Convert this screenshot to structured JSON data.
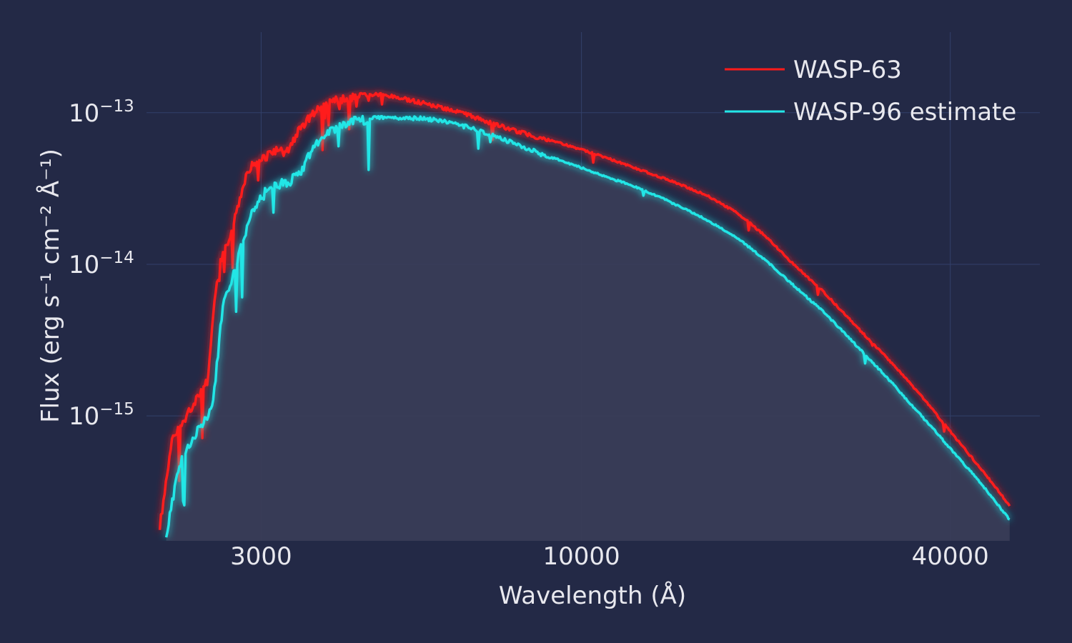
{
  "chart_data": {
    "type": "line",
    "xlabel": "Wavelength (Å)",
    "ylabel": "Flux (erg s⁻¹ cm⁻² Å⁻¹)",
    "x_scale": "log",
    "y_scale": "log",
    "xlim": [
      1950,
      56000
    ],
    "ylim": [
      1.5e-16,
      3.4e-13
    ],
    "x_ticks": [
      {
        "value": 3000,
        "label": "3000"
      },
      {
        "value": 10000,
        "label": "10000"
      },
      {
        "value": 40000,
        "label": "40000"
      }
    ],
    "y_ticks": [
      {
        "value": 1e-13,
        "base": "10",
        "exp": "−13"
      },
      {
        "value": 1e-14,
        "base": "10",
        "exp": "−14"
      },
      {
        "value": 1e-15,
        "base": "10",
        "exp": "−15"
      }
    ],
    "grid": true,
    "legend_position": "top-right",
    "area_fill": "under-series-2",
    "series": [
      {
        "name": "WASP-63",
        "color": "#ff1a1a",
        "x": [
          2050,
          2150,
          2250,
          2350,
          2450,
          2550,
          2650,
          2750,
          2850,
          2950,
          3050,
          3150,
          3300,
          3450,
          3600,
          3800,
          4000,
          4200,
          4400,
          4700,
          5000,
          5500,
          6000,
          6500,
          7000,
          8000,
          9000,
          10000,
          11000,
          12000,
          14000,
          16000,
          18000,
          20000,
          22000,
          25000,
          28000,
          32000,
          36000,
          40000,
          45000,
          50000
        ],
        "y": [
          2e-16,
          7.5e-16,
          1e-15,
          1.4e-15,
          1.8e-15,
          1e-14,
          1.5e-14,
          2.6e-14,
          4.5e-14,
          5e-14,
          5.5e-14,
          6e-14,
          5.8e-14,
          8e-14,
          1e-13,
          1.2e-13,
          1.3e-13,
          1.35e-13,
          1.35e-13,
          1.35e-13,
          1.3e-13,
          1.2e-13,
          1.1e-13,
          1e-13,
          9e-14,
          7.6e-14,
          6.6e-14,
          5.8e-14,
          5.1e-14,
          4.5e-14,
          3.6e-14,
          2.9e-14,
          2.2e-14,
          1.55e-14,
          1.05e-14,
          6.5e-15,
          4e-15,
          2.3e-15,
          1.35e-15,
          8e-16,
          4.5e-16,
          2.6e-16
        ]
      },
      {
        "name": "WASP-96 estimate",
        "color": "#22e6e6",
        "x": [
          2100,
          2200,
          2300,
          2400,
          2500,
          2600,
          2700,
          2800,
          2900,
          3000,
          3100,
          3200,
          3350,
          3500,
          3650,
          3800,
          4000,
          4200,
          4500,
          5000,
          5500,
          6000,
          6500,
          7000,
          8000,
          9000,
          10000,
          11000,
          12000,
          14000,
          16000,
          18000,
          20000,
          22000,
          25000,
          28000,
          32000,
          36000,
          40000,
          45000,
          50000
        ],
        "y": [
          1.7e-16,
          5e-16,
          7e-16,
          9.5e-16,
          1.2e-15,
          6e-15,
          9e-15,
          1.5e-14,
          2.4e-14,
          3e-14,
          3.5e-14,
          3.6e-14,
          3.8e-14,
          4.5e-14,
          6.5e-14,
          7.5e-14,
          8.5e-14,
          9.5e-14,
          9.5e-14,
          9.5e-14,
          9.5e-14,
          9e-14,
          8.3e-14,
          7.5e-14,
          6.2e-14,
          5.1e-14,
          4.4e-14,
          3.8e-14,
          3.4e-14,
          2.6e-14,
          2e-14,
          1.5e-14,
          1.08e-14,
          7.6e-15,
          4.8e-15,
          3e-15,
          1.7e-15,
          1e-15,
          6.2e-16,
          3.6e-16,
          2.1e-16
        ]
      }
    ]
  }
}
